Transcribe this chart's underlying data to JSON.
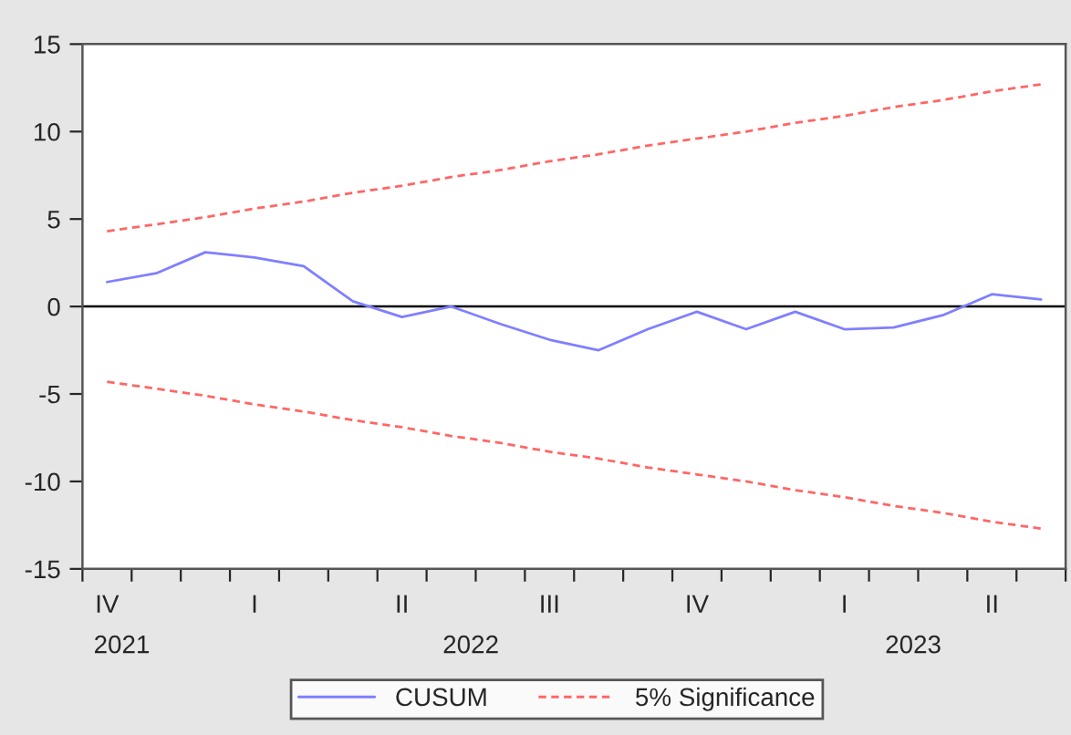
{
  "chart_data": {
    "type": "line",
    "categories": [
      "IV",
      null,
      null,
      "I",
      null,
      null,
      "II",
      null,
      null,
      "III",
      null,
      null,
      "IV",
      null,
      null,
      "I",
      null,
      null,
      "II",
      null
    ],
    "series": [
      {
        "name": "CUSUM",
        "color": "#7f7fff",
        "line_style": "solid",
        "values": [
          1.4,
          1.9,
          3.1,
          2.8,
          2.3,
          0.3,
          -0.6,
          0.0,
          -1.0,
          -1.9,
          -2.5,
          -1.3,
          -0.3,
          -1.3,
          -0.3,
          -1.3,
          -1.2,
          -0.5,
          0.7,
          0.4
        ]
      },
      {
        "name": "5% Significance",
        "color": "#ff6666",
        "line_style": "dashed",
        "values": [
          4.3,
          4.7,
          5.1,
          5.6,
          6.0,
          6.5,
          6.9,
          7.4,
          7.8,
          8.3,
          8.7,
          9.2,
          9.6,
          10.0,
          10.5,
          10.9,
          11.4,
          11.8,
          12.3,
          12.7
        ]
      },
      {
        "color": "#ff6666",
        "line_style": "dashed",
        "values": [
          -4.3,
          -4.7,
          -5.1,
          -5.6,
          -6.0,
          -6.5,
          -6.9,
          -7.4,
          -7.8,
          -8.3,
          -8.7,
          -9.2,
          -9.6,
          -10.0,
          -10.5,
          -10.9,
          -11.4,
          -11.8,
          -12.3,
          -12.7
        ]
      }
    ],
    "ylim": [
      -15,
      15
    ],
    "yticks": [
      -15,
      -10,
      -5,
      0,
      5,
      10,
      15
    ],
    "annotations": [
      "2021",
      "2022",
      "2023"
    ],
    "ref_lines": [
      {
        "axis": "y",
        "value": 0,
        "color": "#000000",
        "line_style": "solid"
      }
    ],
    "grid": false,
    "legend": "bottom",
    "marker": "none"
  }
}
